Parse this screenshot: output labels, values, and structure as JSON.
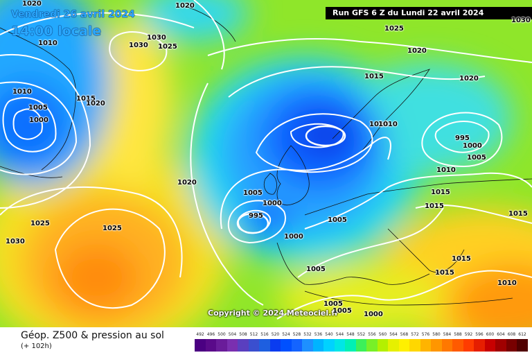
{
  "header": {
    "date": "Vendredi 26 avril 2024",
    "local_time": "14:00 locale",
    "run_info": "Run GFS 6 Z du Lundi 22 avril 2024"
  },
  "copyright": "Copyright © 2024 Meteociel.fr",
  "footer": {
    "product": "Géop. Z500 & pression au sol",
    "lead_time": "(+ 102h)"
  },
  "isobar_labels": [
    {
      "text": "1020"
    },
    {
      "text": "1020"
    },
    {
      "text": "1010"
    },
    {
      "text": "1030"
    },
    {
      "text": "1030"
    },
    {
      "text": "1025"
    },
    {
      "text": "1025"
    },
    {
      "text": "1020"
    },
    {
      "text": "1030"
    },
    {
      "text": "1010"
    },
    {
      "text": "1015"
    },
    {
      "text": "1020"
    },
    {
      "text": "1005"
    },
    {
      "text": "1000"
    },
    {
      "text": "1015"
    },
    {
      "text": "1010"
    },
    {
      "text": "1010"
    },
    {
      "text": "1020"
    },
    {
      "text": "995"
    },
    {
      "text": "1000"
    },
    {
      "text": "1005"
    },
    {
      "text": "1010"
    },
    {
      "text": "1020"
    },
    {
      "text": "1005"
    },
    {
      "text": "1000"
    },
    {
      "text": "995"
    },
    {
      "text": "1000"
    },
    {
      "text": "1005"
    },
    {
      "text": "1025"
    },
    {
      "text": "1030"
    },
    {
      "text": "1025"
    },
    {
      "text": "1015"
    },
    {
      "text": "1015"
    },
    {
      "text": "1015"
    },
    {
      "text": "1015"
    },
    {
      "text": "1015"
    },
    {
      "text": "1010"
    },
    {
      "text": "1005"
    },
    {
      "text": "1005"
    },
    {
      "text": "1005"
    },
    {
      "text": "1000"
    }
  ],
  "scale": {
    "values": [
      "492",
      "496",
      "500",
      "504",
      "508",
      "512",
      "516",
      "520",
      "524",
      "528",
      "532",
      "536",
      "540",
      "544",
      "548",
      "552",
      "556",
      "560",
      "564",
      "568",
      "572",
      "576",
      "580",
      "584",
      "588",
      "592",
      "596",
      "600",
      "604",
      "608",
      "612"
    ],
    "colors": [
      "#4b0082",
      "#5a0a8a",
      "#6a1c9a",
      "#7a2fb0",
      "#5a3fbf",
      "#3a4fcf",
      "#1e5fe0",
      "#0a3cf0",
      "#0050ff",
      "#1464ff",
      "#1e90ff",
      "#00b4ff",
      "#00d2ff",
      "#00e6e6",
      "#00f0b4",
      "#3cf05a",
      "#78f028",
      "#b4f000",
      "#e6f000",
      "#fff000",
      "#ffd700",
      "#ffb400",
      "#ff9600",
      "#ff7800",
      "#ff5a00",
      "#ff3c00",
      "#e61e00",
      "#c80000",
      "#a00000",
      "#780000",
      "#500000"
    ]
  }
}
